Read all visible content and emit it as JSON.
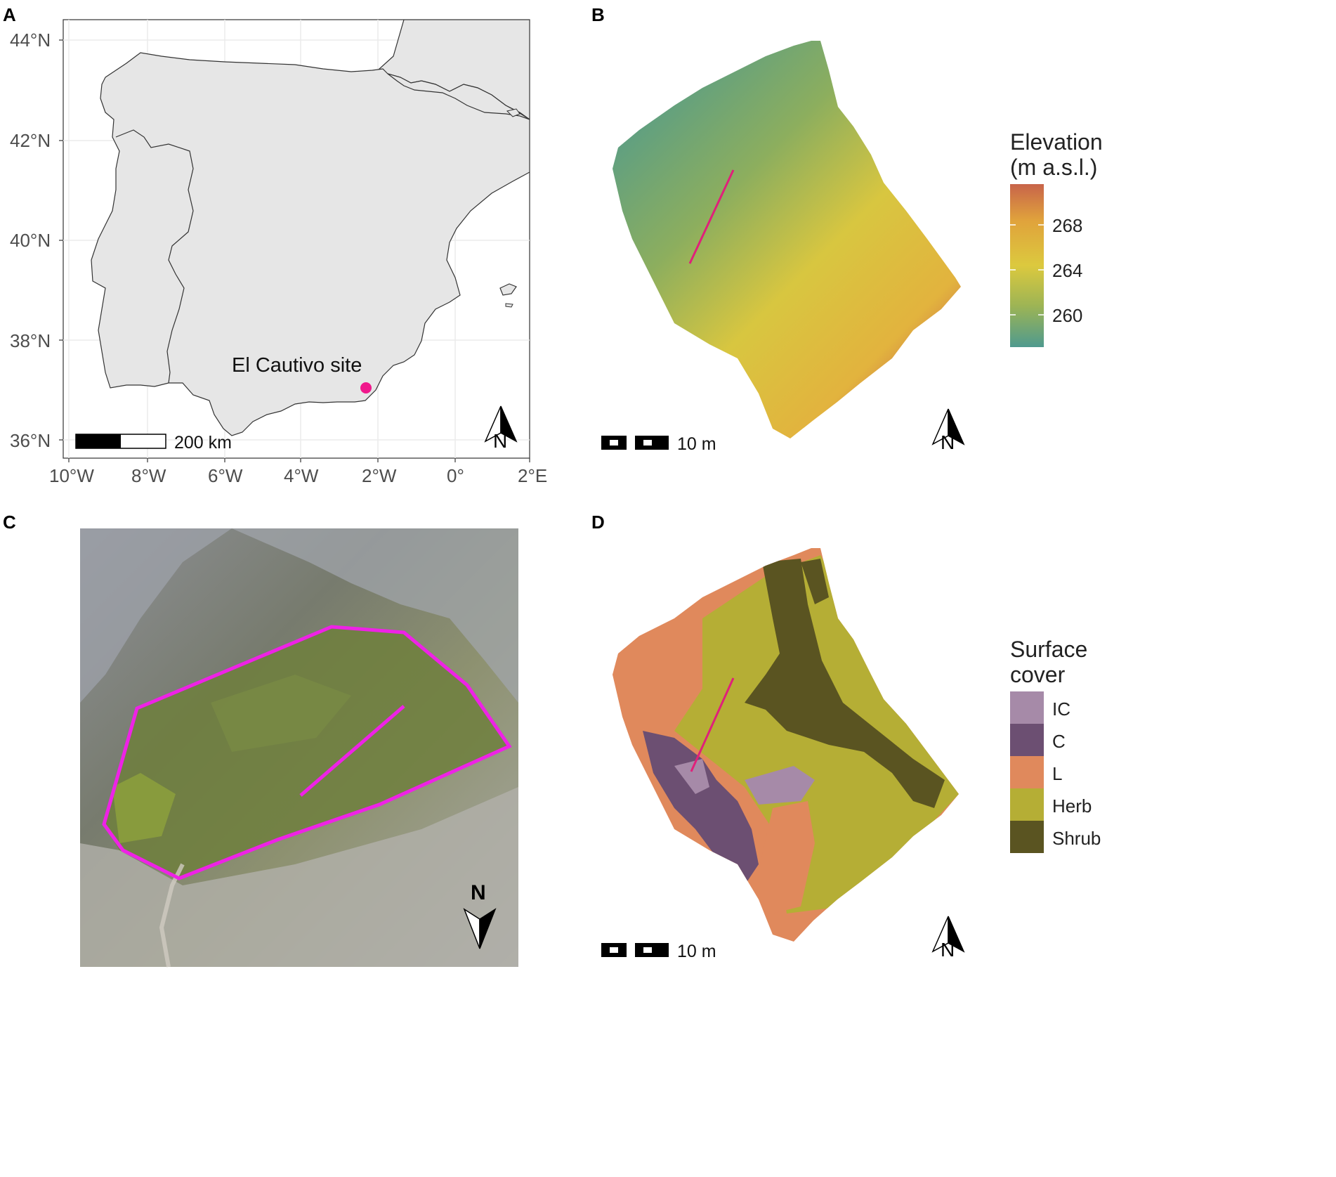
{
  "panels": {
    "a": {
      "letter": "A",
      "lat_ticks": [
        "44°N",
        "42°N",
        "40°N",
        "38°N",
        "36°N"
      ],
      "lon_ticks": [
        "10°W",
        "8°W",
        "6°W",
        "4°W",
        "2°W",
        "0°",
        "2°E"
      ],
      "site_label": "El Cautivo site",
      "scale_label": "200 km",
      "north_label": "N",
      "site_color": "#f0198c",
      "land_color": "#e6e6e6"
    },
    "b": {
      "letter": "B",
      "legend_title_line1": "Elevation",
      "legend_title_line2": "(m a.s.l.)",
      "legend_ticks": [
        "268",
        "264",
        "260"
      ],
      "scale_label": "10 m",
      "north_label": "N",
      "gradient_colors": [
        "#c8644a",
        "#e0a23c",
        "#dcc93e",
        "#9cb455",
        "#5a9a80",
        "#4f9a8e"
      ],
      "transect_color": "#e0207a"
    },
    "c": {
      "letter": "C",
      "north_label": "N",
      "outline_color": "#ee22e6"
    },
    "d": {
      "letter": "D",
      "legend_title_line1": "Surface",
      "legend_title_line2": "cover",
      "categories": [
        {
          "label": "IC",
          "color": "#a68aa8"
        },
        {
          "label": "C",
          "color": "#6c4f72"
        },
        {
          "label": "L",
          "color": "#e0895c"
        },
        {
          "label": "Herb",
          "color": "#b5ae35"
        },
        {
          "label": "Shrub",
          "color": "#5a5421"
        }
      ],
      "scale_label": "10 m",
      "north_label": "N"
    }
  }
}
